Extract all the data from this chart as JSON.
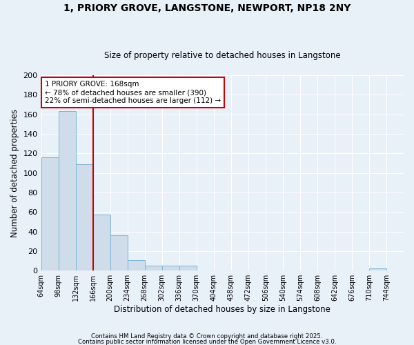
{
  "title_line1": "1, PRIORY GROVE, LANGSTONE, NEWPORT, NP18 2NY",
  "title_line2": "Size of property relative to detached houses in Langstone",
  "xlabel": "Distribution of detached houses by size in Langstone",
  "ylabel": "Number of detached properties",
  "bin_edges": [
    64,
    98,
    132,
    166,
    200,
    234,
    268,
    302,
    336,
    370,
    404,
    438,
    472,
    506,
    540,
    574,
    608,
    642,
    676,
    710,
    744,
    778
  ],
  "bar_heights": [
    116,
    163,
    109,
    57,
    36,
    11,
    5,
    5,
    5,
    0,
    0,
    0,
    0,
    0,
    0,
    0,
    0,
    0,
    0,
    2,
    0
  ],
  "tick_labels": [
    "64sqm",
    "98sqm",
    "132sqm",
    "166sqm",
    "200sqm",
    "234sqm",
    "268sqm",
    "302sqm",
    "336sqm",
    "370sqm",
    "404sqm",
    "438sqm",
    "472sqm",
    "506sqm",
    "540sqm",
    "574sqm",
    "608sqm",
    "642sqm",
    "676sqm",
    "710sqm",
    "744sqm"
  ],
  "bar_color": "#cfdcea",
  "bar_edge_color": "#7ab5d5",
  "bg_color": "#e8f0f8",
  "red_line_x": 166,
  "red_line_color": "#cc0000",
  "annotation_text": "1 PRIORY GROVE: 168sqm\n← 78% of detached houses are smaller (390)\n22% of semi-detached houses are larger (112) →",
  "annotation_box_facecolor": "#ffffff",
  "annotation_box_edgecolor": "#cc0000",
  "ylim": [
    0,
    200
  ],
  "yticks": [
    0,
    20,
    40,
    60,
    80,
    100,
    120,
    140,
    160,
    180,
    200
  ],
  "grid_color": "#ffffff",
  "footer_line1": "Contains HM Land Registry data © Crown copyright and database right 2025.",
  "footer_line2": "Contains public sector information licensed under the Open Government Licence v3.0."
}
